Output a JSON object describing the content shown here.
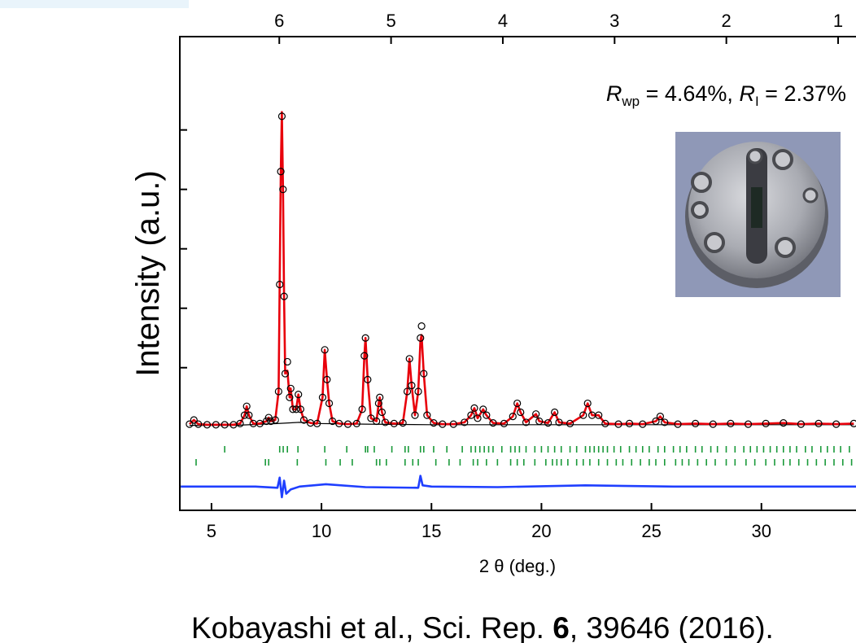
{
  "chart_data": {
    "type": "line",
    "x_label": "2 θ (deg.)",
    "y_label": "Intensity (a.u.)",
    "annotation_parts": [
      "R",
      "wp",
      " = 4.64%, ",
      "R",
      "I",
      " = 2.37%"
    ],
    "xlim": [
      3.56,
      34.3
    ],
    "xticks": [
      5,
      10,
      15,
      20,
      25,
      30
    ],
    "x2lim": [
      6.89,
      0.84
    ],
    "x2ticks": [
      6,
      5,
      4,
      3,
      2,
      1
    ],
    "ylim": [
      -1.4,
      6.57
    ],
    "yticks": [
      1,
      2,
      3,
      4,
      5
    ],
    "x": [
      4.0,
      4.2,
      4.4,
      4.8,
      5.2,
      5.6,
      6.0,
      6.3,
      6.5,
      6.6,
      6.7,
      6.9,
      7.2,
      7.5,
      7.6,
      7.7,
      7.9,
      8.05,
      8.1,
      8.15,
      8.2,
      8.25,
      8.3,
      8.35,
      8.45,
      8.55,
      8.6,
      8.7,
      8.85,
      8.95,
      9.05,
      9.2,
      9.5,
      9.8,
      10.05,
      10.15,
      10.25,
      10.35,
      10.5,
      10.8,
      11.2,
      11.6,
      11.85,
      11.95,
      12.0,
      12.1,
      12.25,
      12.5,
      12.6,
      12.65,
      12.75,
      12.9,
      13.3,
      13.7,
      13.9,
      14.0,
      14.1,
      14.25,
      14.4,
      14.5,
      14.55,
      14.65,
      14.8,
      15.1,
      15.5,
      16.0,
      16.5,
      16.8,
      16.95,
      17.1,
      17.35,
      17.5,
      17.8,
      18.3,
      18.7,
      18.9,
      19.05,
      19.3,
      19.75,
      19.9,
      20.3,
      20.6,
      20.8,
      21.3,
      21.9,
      22.1,
      22.3,
      22.6,
      22.9,
      23.5,
      24.0,
      24.6,
      25.2,
      25.4,
      25.6,
      26.2,
      27.0,
      27.8,
      28.6,
      29.4,
      30.2,
      31.0,
      31.8,
      32.6,
      33.4,
      34.2
    ],
    "series": [
      {
        "style": "line",
        "color": "#e8000b",
        "values": [
          0.05,
          0.12,
          0.05,
          0.04,
          0.04,
          0.04,
          0.04,
          0.06,
          0.2,
          0.35,
          0.2,
          0.06,
          0.06,
          0.1,
          0.16,
          0.1,
          0.12,
          0.6,
          2.4,
          4.3,
          5.3,
          4.0,
          2.2,
          0.9,
          0.95,
          0.5,
          0.65,
          0.3,
          0.3,
          0.55,
          0.3,
          0.12,
          0.07,
          0.06,
          0.5,
          1.3,
          0.8,
          0.4,
          0.1,
          0.06,
          0.05,
          0.06,
          0.3,
          1.2,
          1.5,
          0.8,
          0.15,
          0.1,
          0.4,
          0.5,
          0.25,
          0.08,
          0.06,
          0.07,
          0.6,
          1.15,
          0.7,
          0.2,
          0.6,
          1.45,
          1.55,
          0.9,
          0.2,
          0.07,
          0.05,
          0.05,
          0.08,
          0.2,
          0.32,
          0.15,
          0.3,
          0.2,
          0.07,
          0.06,
          0.18,
          0.4,
          0.25,
          0.08,
          0.22,
          0.1,
          0.07,
          0.25,
          0.08,
          0.06,
          0.2,
          0.4,
          0.2,
          0.2,
          0.06,
          0.05,
          0.06,
          0.05,
          0.1,
          0.18,
          0.08,
          0.05,
          0.06,
          0.05,
          0.06,
          0.05,
          0.06,
          0.07,
          0.05,
          0.06,
          0.05,
          0.06
        ]
      },
      {
        "style": "circles",
        "color": "#000000",
        "values": [
          0.05,
          0.12,
          0.05,
          0.04,
          0.04,
          0.04,
          0.04,
          0.06,
          0.2,
          0.35,
          0.2,
          0.06,
          0.06,
          0.1,
          0.16,
          0.1,
          0.12,
          0.6,
          2.4,
          4.3,
          5.23,
          4.0,
          2.2,
          0.9,
          1.1,
          0.5,
          0.65,
          0.3,
          0.3,
          0.55,
          0.3,
          0.12,
          0.07,
          0.06,
          0.5,
          1.3,
          0.8,
          0.4,
          0.1,
          0.06,
          0.05,
          0.06,
          0.3,
          1.2,
          1.5,
          0.8,
          0.15,
          0.1,
          0.4,
          0.5,
          0.25,
          0.08,
          0.06,
          0.07,
          0.6,
          1.15,
          0.7,
          0.2,
          0.6,
          1.5,
          1.7,
          0.9,
          0.2,
          0.07,
          0.05,
          0.05,
          0.08,
          0.2,
          0.32,
          0.15,
          0.3,
          0.2,
          0.07,
          0.06,
          0.18,
          0.4,
          0.25,
          0.08,
          0.22,
          0.1,
          0.07,
          0.25,
          0.08,
          0.06,
          0.2,
          0.4,
          0.2,
          0.2,
          0.06,
          0.05,
          0.06,
          0.05,
          0.1,
          0.18,
          0.08,
          0.05,
          0.06,
          0.05,
          0.06,
          0.05,
          0.06,
          0.07,
          0.05,
          0.06,
          0.05,
          0.06
        ]
      }
    ],
    "background": {
      "color": "#000000",
      "x": [
        4.0,
        6.0,
        8.0,
        9.0,
        10.0,
        12.0,
        15.0,
        20.0,
        34.2
      ],
      "values": [
        0.03,
        0.03,
        0.06,
        0.08,
        0.06,
        0.05,
        0.04,
        0.04,
        0.04
      ]
    },
    "difference": {
      "color": "#1f3fff",
      "x": [
        3.6,
        5.0,
        7.0,
        8.0,
        8.1,
        8.2,
        8.3,
        8.4,
        8.6,
        9.0,
        10.2,
        12.0,
        14.4,
        14.5,
        14.6,
        15.0,
        18.0,
        22.0,
        26.0,
        30.0,
        34.3
      ],
      "values": [
        -1.0,
        -1.0,
        -1.0,
        -1.02,
        -0.85,
        -1.18,
        -0.9,
        -1.12,
        -1.05,
        -1.0,
        -0.96,
        -1.01,
        -1.02,
        -0.82,
        -0.98,
        -1.0,
        -1.01,
        -0.98,
        -1.0,
        -1.0,
        -1.0
      ]
    },
    "reflection_rows": [
      {
        "color": "#1a9a3a",
        "values": [
          5.6,
          8.1,
          8.26,
          8.45,
          8.93,
          10.15,
          11.15,
          12.0,
          12.1,
          12.4,
          13.2,
          13.8,
          13.95,
          14.5,
          14.65,
          15.1,
          15.7,
          16.4,
          16.8,
          17.0,
          17.2,
          17.4,
          17.6,
          17.8,
          18.2,
          18.6,
          18.8,
          19.0,
          19.3,
          19.7,
          20.0,
          20.3,
          20.6,
          20.9,
          21.3,
          21.6,
          22.0,
          22.2,
          22.4,
          22.6,
          22.8,
          23.0,
          23.3,
          23.6,
          24.0,
          24.3,
          24.6,
          24.9,
          25.3,
          25.6,
          26.0,
          26.3,
          26.6,
          27.0,
          27.3,
          27.7,
          28.0,
          28.4,
          28.8,
          29.2,
          29.5,
          29.8,
          30.1,
          30.4,
          30.7,
          31.0,
          31.3,
          31.6,
          32.0,
          32.3,
          32.7,
          33.0,
          33.3,
          33.6,
          34.0
        ]
      },
      {
        "color": "#1a9a3a",
        "values": [
          4.3,
          7.45,
          7.6,
          8.9,
          10.2,
          10.85,
          11.4,
          12.5,
          12.65,
          12.95,
          13.8,
          14.15,
          14.4,
          15.2,
          15.8,
          16.3,
          16.9,
          17.1,
          17.5,
          18.0,
          18.6,
          18.9,
          19.2,
          19.7,
          20.2,
          20.5,
          20.7,
          20.9,
          21.2,
          21.6,
          21.9,
          22.2,
          22.6,
          23.0,
          23.4,
          23.7,
          24.1,
          24.5,
          24.9,
          25.2,
          25.6,
          26.1,
          26.4,
          26.7,
          27.1,
          27.5,
          27.9,
          28.4,
          28.8,
          29.3,
          29.7,
          30.2,
          30.6,
          31.0,
          31.3,
          31.7,
          32.1,
          32.5,
          32.9,
          33.3,
          33.7,
          34.1
        ]
      }
    ]
  },
  "caption_parts": [
    "Kobayashi et al., Sci. Rep. ",
    "6",
    ", 39646 (2016)."
  ]
}
